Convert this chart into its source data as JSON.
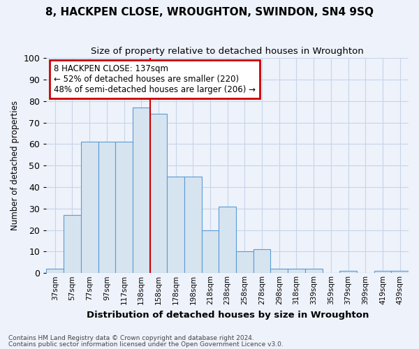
{
  "title": "8, HACKPEN CLOSE, WROUGHTON, SWINDON, SN4 9SQ",
  "subtitle": "Size of property relative to detached houses in Wroughton",
  "xlabel": "Distribution of detached houses by size in Wroughton",
  "ylabel": "Number of detached properties",
  "bar_labels": [
    "37sqm",
    "57sqm",
    "77sqm",
    "97sqm",
    "117sqm",
    "138sqm",
    "158sqm",
    "178sqm",
    "198sqm",
    "218sqm",
    "238sqm",
    "258sqm",
    "278sqm",
    "298sqm",
    "318sqm",
    "339sqm",
    "359sqm",
    "379sqm",
    "399sqm",
    "419sqm",
    "439sqm"
  ],
  "bar_values": [
    2,
    27,
    61,
    61,
    61,
    77,
    74,
    45,
    45,
    20,
    31,
    10,
    11,
    2,
    2,
    2,
    0,
    1,
    0,
    1,
    1
  ],
  "bar_color": "#d6e4f0",
  "bar_edge_color": "#5b9bd5",
  "highlight_index": 5,
  "highlight_line_color": "#cc0000",
  "ylim": [
    0,
    100
  ],
  "yticks": [
    0,
    10,
    20,
    30,
    40,
    50,
    60,
    70,
    80,
    90,
    100
  ],
  "annotation_text": "8 HACKPEN CLOSE: 137sqm\n← 52% of detached houses are smaller (220)\n48% of semi-detached houses are larger (206) →",
  "annotation_box_color": "#ffffff",
  "annotation_box_edge_color": "#cc0000",
  "footer1": "Contains HM Land Registry data © Crown copyright and database right 2024.",
  "footer2": "Contains public sector information licensed under the Open Government Licence v3.0.",
  "background_color": "#eef2fb",
  "plot_bg_color": "#eef2fb",
  "grid_color": "#c8d4e8"
}
